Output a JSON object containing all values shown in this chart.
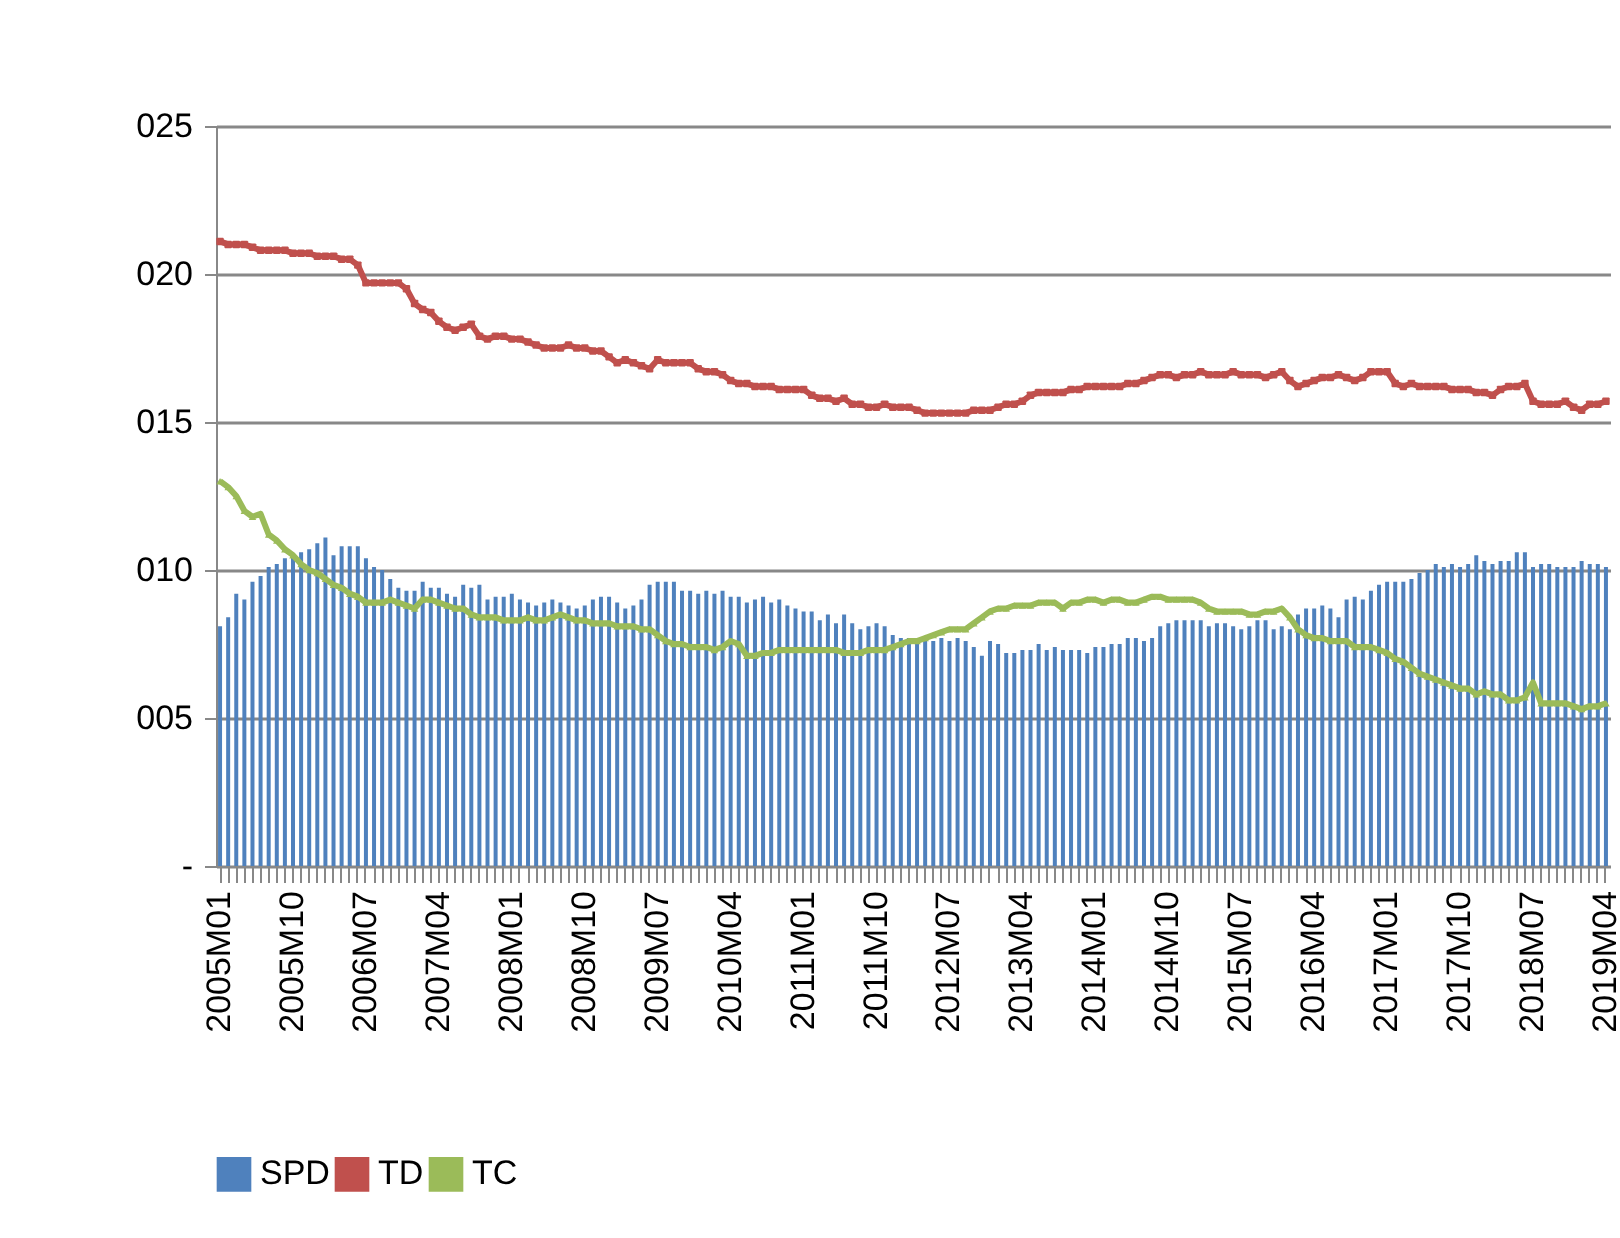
{
  "chart_data": {
    "type": "bar",
    "categories": [
      "2005M01",
      null,
      null,
      null,
      null,
      null,
      null,
      null,
      null,
      "2005M10",
      null,
      null,
      null,
      null,
      null,
      null,
      null,
      null,
      "2006M07",
      null,
      null,
      null,
      null,
      null,
      null,
      null,
      null,
      "2007M04",
      null,
      null,
      null,
      null,
      null,
      null,
      null,
      null,
      "2008M01",
      null,
      null,
      null,
      null,
      null,
      null,
      null,
      null,
      "2008M10",
      null,
      null,
      null,
      null,
      null,
      null,
      null,
      null,
      "2009M07",
      null,
      null,
      null,
      null,
      null,
      null,
      null,
      null,
      "2010M04",
      null,
      null,
      null,
      null,
      null,
      null,
      null,
      null,
      "2011M01",
      null,
      null,
      null,
      null,
      null,
      null,
      null,
      null,
      "2011M10",
      null,
      null,
      null,
      null,
      null,
      null,
      null,
      null,
      "2012M07",
      null,
      null,
      null,
      null,
      null,
      null,
      null,
      null,
      "2013M04",
      null,
      null,
      null,
      null,
      null,
      null,
      null,
      null,
      "2014M01",
      null,
      null,
      null,
      null,
      null,
      null,
      null,
      null,
      "2014M10",
      null,
      null,
      null,
      null,
      null,
      null,
      null,
      null,
      "2015M07",
      null,
      null,
      null,
      null,
      null,
      null,
      null,
      null,
      "2016M04",
      null,
      null,
      null,
      null,
      null,
      null,
      null,
      null,
      "2017M01",
      null,
      null,
      null,
      null,
      null,
      null,
      null,
      null,
      "2017M10",
      null,
      null,
      null,
      null,
      null,
      null,
      null,
      null,
      "2018M07",
      null,
      null,
      null,
      null,
      null,
      null,
      null,
      null,
      "2019M04"
    ],
    "series": [
      {
        "name": "SPD",
        "color": "#4f81bd",
        "values": [
          8.1,
          8.4,
          9.2,
          9.0,
          9.6,
          9.8,
          10.1,
          10.2,
          10.4,
          10.5,
          10.6,
          10.7,
          10.9,
          11.1,
          10.5,
          10.8,
          10.8,
          10.8,
          10.4,
          10.1,
          10.0,
          9.7,
          9.4,
          9.3,
          9.3,
          9.6,
          9.4,
          9.4,
          9.2,
          9.1,
          9.5,
          9.4,
          9.5,
          9.0,
          9.1,
          9.1,
          9.2,
          9.0,
          8.9,
          8.8,
          8.9,
          9.0,
          8.9,
          8.8,
          8.7,
          8.8,
          9.0,
          9.1,
          9.1,
          8.9,
          8.7,
          8.8,
          9.0,
          9.5,
          9.6,
          9.6,
          9.6,
          9.3,
          9.3,
          9.2,
          9.3,
          9.2,
          9.3,
          9.1,
          9.1,
          8.9,
          9.0,
          9.1,
          8.9,
          9.0,
          8.8,
          8.7,
          8.6,
          8.6,
          8.3,
          8.5,
          8.2,
          8.5,
          8.2,
          8.0,
          8.1,
          8.2,
          8.1,
          7.8,
          7.7,
          7.7,
          7.7,
          7.7,
          7.6,
          7.7,
          7.6,
          7.7,
          7.6,
          7.4,
          7.1,
          7.6,
          7.5,
          7.2,
          7.2,
          7.3,
          7.3,
          7.5,
          7.3,
          7.4,
          7.3,
          7.3,
          7.3,
          7.2,
          7.4,
          7.4,
          7.5,
          7.5,
          7.7,
          7.7,
          7.6,
          7.7,
          8.1,
          8.2,
          8.3,
          8.3,
          8.3,
          8.3,
          8.1,
          8.2,
          8.2,
          8.1,
          8.0,
          8.1,
          8.3,
          8.3,
          8.0,
          8.1,
          8.0,
          8.5,
          8.7,
          8.7,
          8.8,
          8.7,
          8.4,
          9.0,
          9.1,
          9.0,
          9.3,
          9.5,
          9.6,
          9.6,
          9.6,
          9.7,
          9.9,
          10.0,
          10.2,
          10.1,
          10.2,
          10.1,
          10.2,
          10.5,
          10.3,
          10.2,
          10.3,
          10.3,
          10.6,
          10.6,
          10.1,
          10.2,
          10.2,
          10.1,
          10.1,
          10.1,
          10.3,
          10.2,
          10.2,
          10.1
        ]
      },
      {
        "name": "TD",
        "type": "line",
        "marker": "square",
        "color": "#c0504d",
        "values": [
          21.1,
          21.0,
          21.0,
          21.0,
          20.9,
          20.8,
          20.8,
          20.8,
          20.8,
          20.7,
          20.7,
          20.7,
          20.6,
          20.6,
          20.6,
          20.5,
          20.5,
          20.3,
          19.7,
          19.7,
          19.7,
          19.7,
          19.7,
          19.5,
          19.0,
          18.8,
          18.7,
          18.4,
          18.2,
          18.1,
          18.2,
          18.3,
          17.9,
          17.8,
          17.9,
          17.9,
          17.8,
          17.8,
          17.7,
          17.6,
          17.5,
          17.5,
          17.5,
          17.6,
          17.5,
          17.5,
          17.4,
          17.4,
          17.2,
          17.0,
          17.1,
          17.0,
          16.9,
          16.8,
          17.1,
          17.0,
          17.0,
          17.0,
          17.0,
          16.8,
          16.7,
          16.7,
          16.6,
          16.4,
          16.3,
          16.3,
          16.2,
          16.2,
          16.2,
          16.1,
          16.1,
          16.1,
          16.1,
          15.9,
          15.8,
          15.8,
          15.7,
          15.8,
          15.6,
          15.6,
          15.5,
          15.5,
          15.6,
          15.5,
          15.5,
          15.5,
          15.4,
          15.3,
          15.3,
          15.3,
          15.3,
          15.3,
          15.3,
          15.4,
          15.4,
          15.4,
          15.5,
          15.6,
          15.6,
          15.7,
          15.9,
          16.0,
          16.0,
          16.0,
          16.0,
          16.1,
          16.1,
          16.2,
          16.2,
          16.2,
          16.2,
          16.2,
          16.3,
          16.3,
          16.4,
          16.5,
          16.6,
          16.6,
          16.5,
          16.6,
          16.6,
          16.7,
          16.6,
          16.6,
          16.6,
          16.7,
          16.6,
          16.6,
          16.6,
          16.5,
          16.6,
          16.7,
          16.4,
          16.2,
          16.3,
          16.4,
          16.5,
          16.5,
          16.6,
          16.5,
          16.4,
          16.5,
          16.7,
          16.7,
          16.7,
          16.3,
          16.2,
          16.3,
          16.2,
          16.2,
          16.2,
          16.2,
          16.1,
          16.1,
          16.1,
          16.0,
          16.0,
          15.9,
          16.1,
          16.2,
          16.2,
          16.3,
          15.7,
          15.6,
          15.6,
          15.6,
          15.7,
          15.5,
          15.4,
          15.6,
          15.6,
          15.7
        ]
      },
      {
        "name": "TC",
        "type": "line",
        "marker": "triangle",
        "color": "#9bbb59",
        "values": [
          13.0,
          12.8,
          12.5,
          12.0,
          11.8,
          11.9,
          11.2,
          11.0,
          10.7,
          10.5,
          10.2,
          10.0,
          9.9,
          9.7,
          9.5,
          9.4,
          9.2,
          9.1,
          8.9,
          8.9,
          8.9,
          9.0,
          8.9,
          8.8,
          8.7,
          9.0,
          9.0,
          8.9,
          8.8,
          8.7,
          8.7,
          8.5,
          8.4,
          8.4,
          8.4,
          8.3,
          8.3,
          8.3,
          8.4,
          8.3,
          8.3,
          8.4,
          8.5,
          8.4,
          8.3,
          8.3,
          8.2,
          8.2,
          8.2,
          8.1,
          8.1,
          8.1,
          8.0,
          8.0,
          7.8,
          7.6,
          7.5,
          7.5,
          7.4,
          7.4,
          7.4,
          7.3,
          7.4,
          7.6,
          7.5,
          7.1,
          7.1,
          7.2,
          7.2,
          7.3,
          7.3,
          7.3,
          7.3,
          7.3,
          7.3,
          7.3,
          7.3,
          7.2,
          7.2,
          7.2,
          7.3,
          7.3,
          7.3,
          7.4,
          7.5,
          7.6,
          7.6,
          7.7,
          7.8,
          7.9,
          8.0,
          8.0,
          8.0,
          8.2,
          8.4,
          8.6,
          8.7,
          8.7,
          8.8,
          8.8,
          8.8,
          8.9,
          8.9,
          8.9,
          8.7,
          8.9,
          8.9,
          9.0,
          9.0,
          8.9,
          9.0,
          9.0,
          8.9,
          8.9,
          9.0,
          9.1,
          9.1,
          9.0,
          9.0,
          9.0,
          9.0,
          8.9,
          8.7,
          8.6,
          8.6,
          8.6,
          8.6,
          8.5,
          8.5,
          8.6,
          8.6,
          8.7,
          8.4,
          8.0,
          7.8,
          7.7,
          7.7,
          7.6,
          7.6,
          7.6,
          7.4,
          7.4,
          7.4,
          7.3,
          7.2,
          7.0,
          6.9,
          6.7,
          6.5,
          6.4,
          6.3,
          6.2,
          6.1,
          6.0,
          6.0,
          5.8,
          5.9,
          5.8,
          5.8,
          5.6,
          5.6,
          5.7,
          6.2,
          5.5,
          5.5,
          5.5,
          5.5,
          5.4,
          5.3,
          5.4,
          5.4,
          5.5
        ]
      }
    ],
    "ylim": [
      0,
      25
    ],
    "yticks": [
      {
        "value": 0,
        "label": "-"
      },
      {
        "value": 5,
        "label": "005"
      },
      {
        "value": 10,
        "label": "010"
      },
      {
        "value": 15,
        "label": "015"
      },
      {
        "value": 20,
        "label": "020"
      },
      {
        "value": 25,
        "label": "025"
      }
    ],
    "grid": "y",
    "legend": "bottom"
  }
}
